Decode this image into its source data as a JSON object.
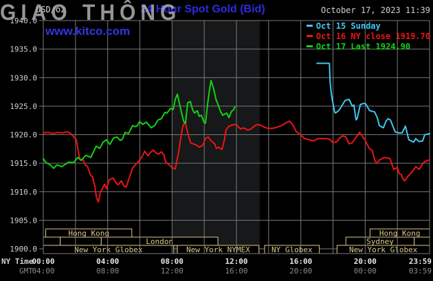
{
  "watermark": "GIAO THÔNG",
  "header": {
    "unit_label": "USD/oz",
    "title": "24 Hour Spot Gold (Bid)",
    "timestamp": "October 17, 2023 11:39",
    "site": "www.kitco.com"
  },
  "legend": {
    "items": [
      {
        "label": "Oct 15 Sunday",
        "color": "#3ec9f5"
      },
      {
        "label": "Oct 16 NY close 1919.70",
        "color": "#f01414"
      },
      {
        "label": "Oct 17 Last 1924.90",
        "color": "#12d412"
      }
    ]
  },
  "axis": {
    "ny_time_label": "NY Time",
    "gmt_label": "GMT",
    "ny_ticks": [
      {
        "t": 0,
        "label": "00:00"
      },
      {
        "t": 4,
        "label": "04:00"
      },
      {
        "t": 8,
        "label": "08:00"
      },
      {
        "t": 12,
        "label": "12:00"
      },
      {
        "t": 16,
        "label": "16:00"
      },
      {
        "t": 20,
        "label": "20:00"
      },
      {
        "t": 24,
        "label": "23:59"
      }
    ],
    "gmt_ticks": [
      "04:00",
      "08:00",
      "12:00",
      "16:00",
      "20:00",
      "00:00",
      "03:59"
    ]
  },
  "colors": {
    "background": "#000000",
    "grid": "#7a7a7a",
    "band": "#161819",
    "axis_text": "#d4d4d4",
    "axis_text_dim": "#8a8a8a",
    "session": "#d9c браво584",
    "session_tan": "#dcca8a",
    "title_blue": "#2b2be2",
    "kitco_blue": "#3333e6",
    "cyan": "#3ec9f5",
    "red": "#f01414",
    "green": "#12d412",
    "watermark_gray": "#aaaaaa"
  },
  "chart_data": {
    "type": "line",
    "title": "24 Hour Spot Gold (Bid)",
    "ylabel": "USD/oz",
    "ylim": [
      1900,
      1940
    ],
    "xlim_hours_ny": [
      0,
      24
    ],
    "y_ticks": [
      1940,
      1935,
      1930,
      1925,
      1920,
      1915,
      1910,
      1905,
      1900
    ],
    "x_gridline_step_hours": 2,
    "grid": true,
    "legend_position": "top-right",
    "shaded_band_hours": {
      "from": 8.0,
      "to": 13.45
    },
    "series": [
      {
        "name": "Oct 15 Sunday",
        "color_key": "cyan",
        "points": [
          [
            17,
            1932.5
          ],
          [
            17.78,
            1932.5
          ],
          [
            17.82,
            1929.2
          ],
          [
            17.9,
            1927
          ],
          [
            18.1,
            1924
          ],
          [
            18.15,
            1923.8
          ],
          [
            18.3,
            1924.1
          ],
          [
            18.4,
            1924.4
          ],
          [
            18.75,
            1926
          ],
          [
            19,
            1926.2
          ],
          [
            19.2,
            1925
          ],
          [
            19.3,
            1925.2
          ],
          [
            19.43,
            1922.6
          ],
          [
            19.5,
            1922.8
          ],
          [
            19.7,
            1925.3
          ],
          [
            19.94,
            1925.5
          ],
          [
            20.03,
            1925.4
          ],
          [
            20.28,
            1924.2
          ],
          [
            20.58,
            1924
          ],
          [
            20.75,
            1923
          ],
          [
            20.88,
            1921.6
          ],
          [
            21.13,
            1921.2
          ],
          [
            21.3,
            1922.4
          ],
          [
            21.43,
            1922.8
          ],
          [
            21.56,
            1922.6
          ],
          [
            21.86,
            1920.5
          ],
          [
            22.07,
            1920.3
          ],
          [
            22.29,
            1920.3
          ],
          [
            22.5,
            1921.5
          ],
          [
            22.71,
            1919.1
          ],
          [
            23.01,
            1918.7
          ],
          [
            23.14,
            1919.3
          ],
          [
            23.35,
            1918.8
          ],
          [
            23.57,
            1918.9
          ],
          [
            23.7,
            1920
          ],
          [
            23.9,
            1920.1
          ],
          [
            24,
            1920.2
          ]
        ]
      },
      {
        "name": "Oct 16 NY close 1919.70",
        "color_key": "red",
        "points": [
          [
            0,
            1920.3
          ],
          [
            0.3,
            1920.4
          ],
          [
            0.6,
            1920.2
          ],
          [
            0.9,
            1920.4
          ],
          [
            1.2,
            1920.3
          ],
          [
            1.5,
            1920.5
          ],
          [
            1.7,
            1920.2
          ],
          [
            1.9,
            1919.6
          ],
          [
            2.05,
            1919.1
          ],
          [
            2.15,
            1917.6
          ],
          [
            2.25,
            1915.9
          ],
          [
            2.35,
            1915.5
          ],
          [
            2.45,
            1915.7
          ],
          [
            2.6,
            1914.7
          ],
          [
            2.75,
            1914.4
          ],
          [
            2.95,
            1912.8
          ],
          [
            3.05,
            1912.7
          ],
          [
            3.2,
            1911
          ],
          [
            3.3,
            1909
          ],
          [
            3.42,
            1908.2
          ],
          [
            3.55,
            1910
          ],
          [
            3.65,
            1910.4
          ],
          [
            3.8,
            1911.3
          ],
          [
            3.95,
            1910.5
          ],
          [
            4.05,
            1911.8
          ],
          [
            4.15,
            1912.2
          ],
          [
            4.35,
            1912.4
          ],
          [
            4.5,
            1911.6
          ],
          [
            4.65,
            1911.2
          ],
          [
            4.85,
            1911.9
          ],
          [
            5,
            1911
          ],
          [
            5.15,
            1910.8
          ],
          [
            5.35,
            1912.5
          ],
          [
            5.55,
            1914.2
          ],
          [
            5.75,
            1914.8
          ],
          [
            6,
            1915.6
          ],
          [
            6.15,
            1916.2
          ],
          [
            6.3,
            1917.1
          ],
          [
            6.5,
            1916.3
          ],
          [
            6.7,
            1917
          ],
          [
            6.85,
            1917.3
          ],
          [
            7,
            1916.8
          ],
          [
            7.15,
            1916.6
          ],
          [
            7.35,
            1917
          ],
          [
            7.5,
            1916.4
          ],
          [
            7.6,
            1915.2
          ],
          [
            7.8,
            1914.8
          ],
          [
            8,
            1914.2
          ],
          [
            8.2,
            1914
          ],
          [
            8.4,
            1916.8
          ],
          [
            8.55,
            1919.6
          ],
          [
            8.65,
            1921.3
          ],
          [
            8.75,
            1922
          ],
          [
            8.85,
            1921.8
          ],
          [
            9,
            1920
          ],
          [
            9.15,
            1918.6
          ],
          [
            9.3,
            1918.4
          ],
          [
            9.5,
            1918.2
          ],
          [
            9.7,
            1917.8
          ],
          [
            9.9,
            1918.1
          ],
          [
            10.1,
            1919.4
          ],
          [
            10.25,
            1919.6
          ],
          [
            10.4,
            1919
          ],
          [
            10.65,
            1918.4
          ],
          [
            10.75,
            1917.6
          ],
          [
            10.9,
            1917.8
          ],
          [
            11.1,
            1917.4
          ],
          [
            11.25,
            1919
          ],
          [
            11.35,
            1920.8
          ],
          [
            11.5,
            1921.4
          ],
          [
            11.65,
            1921.6
          ],
          [
            11.85,
            1921.8
          ],
          [
            12.05,
            1921.6
          ],
          [
            12.25,
            1921
          ],
          [
            12.45,
            1921.2
          ],
          [
            12.7,
            1920.8
          ],
          [
            12.9,
            1921
          ],
          [
            13.1,
            1921.5
          ],
          [
            13.3,
            1921.8
          ],
          [
            13.55,
            1921.6
          ],
          [
            13.75,
            1921.3
          ],
          [
            13.95,
            1921.1
          ],
          [
            14.2,
            1921.1
          ],
          [
            14.4,
            1921.2
          ],
          [
            14.6,
            1921.4
          ],
          [
            14.8,
            1921.6
          ],
          [
            15.05,
            1922
          ],
          [
            15.3,
            1922.4
          ],
          [
            15.55,
            1921.5
          ],
          [
            15.7,
            1920.6
          ],
          [
            16,
            1919.9
          ],
          [
            16.25,
            1919.3
          ],
          [
            16.55,
            1919.1
          ],
          [
            16.8,
            1918.9
          ],
          [
            17.05,
            1919.3
          ],
          [
            17.3,
            1919.3
          ],
          [
            17.6,
            1919.3
          ],
          [
            17.8,
            1919.2
          ],
          [
            18,
            1918.6
          ],
          [
            18.25,
            1918.8
          ],
          [
            18.4,
            1919.4
          ],
          [
            18.6,
            1919.8
          ],
          [
            18.8,
            1919.6
          ],
          [
            19,
            1918.4
          ],
          [
            19.2,
            1918.6
          ],
          [
            19.45,
            1919.6
          ],
          [
            19.65,
            1920.4
          ],
          [
            19.8,
            1919.8
          ],
          [
            20,
            1919
          ],
          [
            20.25,
            1917.6
          ],
          [
            20.45,
            1917.2
          ],
          [
            20.6,
            1915.4
          ],
          [
            20.75,
            1915
          ],
          [
            20.9,
            1915.6
          ],
          [
            21.1,
            1915.9
          ],
          [
            21.25,
            1916
          ],
          [
            21.4,
            1915.9
          ],
          [
            21.55,
            1915.8
          ],
          [
            21.7,
            1914.5
          ],
          [
            21.8,
            1913.9
          ],
          [
            22,
            1914.3
          ],
          [
            22.1,
            1913.2
          ],
          [
            22.25,
            1913
          ],
          [
            22.35,
            1912.2
          ],
          [
            22.45,
            1911.9
          ],
          [
            22.6,
            1912.5
          ],
          [
            22.75,
            1913
          ],
          [
            22.95,
            1913.6
          ],
          [
            23.15,
            1914.4
          ],
          [
            23.35,
            1913.9
          ],
          [
            23.5,
            1914.6
          ],
          [
            23.65,
            1915.2
          ],
          [
            23.8,
            1915.4
          ],
          [
            24,
            1915.6
          ]
        ]
      },
      {
        "name": "Oct 17 Last 1924.90",
        "color_key": "green",
        "points": [
          [
            0,
            1915.8
          ],
          [
            0.17,
            1915.1
          ],
          [
            0.43,
            1914.7
          ],
          [
            0.64,
            1914.1
          ],
          [
            0.85,
            1914.7
          ],
          [
            1.15,
            1914.4
          ],
          [
            1.58,
            1915.2
          ],
          [
            1.88,
            1915.1
          ],
          [
            2.14,
            1916
          ],
          [
            2.35,
            1915.5
          ],
          [
            2.65,
            1916.4
          ],
          [
            2.95,
            1916
          ],
          [
            3.29,
            1918
          ],
          [
            3.5,
            1917.6
          ],
          [
            3.72,
            1918.7
          ],
          [
            3.93,
            1919.1
          ],
          [
            4.14,
            1918.3
          ],
          [
            4.36,
            1919.4
          ],
          [
            4.57,
            1919.6
          ],
          [
            4.78,
            1919
          ],
          [
            4.91,
            1919.2
          ],
          [
            5.08,
            1920.4
          ],
          [
            5.3,
            1920.2
          ],
          [
            5.55,
            1921.6
          ],
          [
            5.72,
            1921.4
          ],
          [
            5.85,
            1921.6
          ],
          [
            5.98,
            1922.3
          ],
          [
            6.19,
            1921.8
          ],
          [
            6.4,
            1922.2
          ],
          [
            6.7,
            1921.2
          ],
          [
            6.92,
            1921.6
          ],
          [
            7.13,
            1922.6
          ],
          [
            7.34,
            1922.8
          ],
          [
            7.56,
            1923.9
          ],
          [
            7.69,
            1923.8
          ],
          [
            7.9,
            1924.6
          ],
          [
            8.07,
            1924.4
          ],
          [
            8.2,
            1926.2
          ],
          [
            8.33,
            1927.1
          ],
          [
            8.54,
            1924.4
          ],
          [
            8.71,
            1922.4
          ],
          [
            8.84,
            1922
          ],
          [
            8.97,
            1925.6
          ],
          [
            9.14,
            1925.8
          ],
          [
            9.27,
            1924.4
          ],
          [
            9.39,
            1923.8
          ],
          [
            9.57,
            1924.2
          ],
          [
            9.69,
            1923.2
          ],
          [
            9.82,
            1923.4
          ],
          [
            9.99,
            1922.2
          ],
          [
            10.08,
            1922
          ],
          [
            10.2,
            1925.2
          ],
          [
            10.3,
            1927.3
          ],
          [
            10.42,
            1929.5
          ],
          [
            10.59,
            1928
          ],
          [
            10.72,
            1926.3
          ],
          [
            10.89,
            1925
          ],
          [
            11.02,
            1924
          ],
          [
            11.15,
            1923.4
          ],
          [
            11.4,
            1923.8
          ],
          [
            11.53,
            1923
          ],
          [
            11.7,
            1924.1
          ],
          [
            11.83,
            1924.4
          ],
          [
            11.9,
            1924.9
          ]
        ]
      }
    ],
    "sessions": [
      {
        "row": 0,
        "from": 0.15,
        "to": 5.5,
        "label": "Hong Kong"
      },
      {
        "row": 0,
        "from": 20.3,
        "to": 24,
        "label": "Hong Kong"
      },
      {
        "row": 1,
        "from": 0,
        "to": 1.05,
        "label": ""
      },
      {
        "row": 1,
        "from": 1.05,
        "to": 3.6,
        "label": ""
      },
      {
        "row": 1,
        "from": 3.6,
        "to": 10.85,
        "label": "London"
      },
      {
        "row": 1,
        "from": 18.8,
        "to": 23.05,
        "label": "Sydney"
      },
      {
        "row": 1,
        "from": 23.05,
        "to": 24,
        "label": ""
      },
      {
        "row": 2,
        "from": 0,
        "to": 8.1,
        "label": "New York Globex"
      },
      {
        "row": 2,
        "from": 8.33,
        "to": 13.4,
        "label": "New York NYMEX"
      },
      {
        "row": 2,
        "from": 13.75,
        "to": 17.15,
        "label": "NY Globex"
      },
      {
        "row": 2,
        "from": 18.25,
        "to": 24,
        "label": "New York Globex"
      }
    ]
  }
}
